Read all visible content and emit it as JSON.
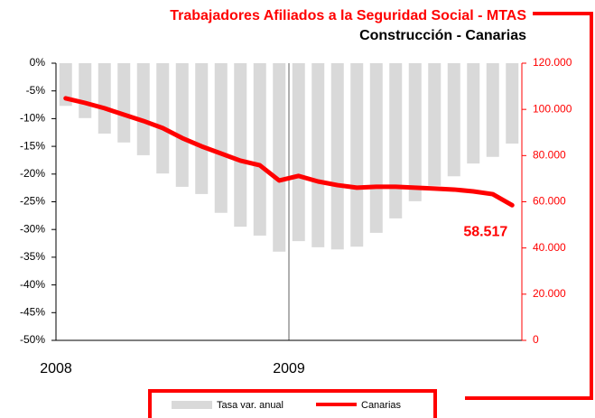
{
  "chart_data": {
    "type": "bar_line",
    "title": "Trabajadores Afiliados a la Seguridad Social - MTAS",
    "subtitle": "Construcción - Canarias",
    "categories": [
      "2008",
      null,
      null,
      null,
      null,
      null,
      null,
      null,
      null,
      null,
      null,
      null,
      "2009",
      null,
      null,
      null,
      null,
      null,
      null,
      null,
      null,
      null,
      null,
      null
    ],
    "series": [
      {
        "name": "Tasa var. anual",
        "type": "bar",
        "axis": "y",
        "color": "#d9d9d9",
        "values": [
          -7.7,
          -9.9,
          -12.7,
          -14.3,
          -16.6,
          -19.9,
          -22.3,
          -23.6,
          -27.0,
          -29.5,
          -31.1,
          -34.0,
          -32.1,
          -33.2,
          -33.6,
          -33.1,
          -30.6,
          -28.0,
          -24.9,
          -22.1,
          -20.4,
          -18.1,
          -16.9,
          -14.5
        ]
      },
      {
        "name": "Canarias",
        "type": "line",
        "axis": "y2",
        "color": "#ff0000",
        "values": [
          104800,
          102800,
          100500,
          97700,
          95000,
          91900,
          87600,
          84000,
          80900,
          77800,
          75800,
          69200,
          71200,
          68800,
          67200,
          66100,
          66500,
          66500,
          66100,
          65700,
          65300,
          64500,
          63300,
          58517
        ],
        "value_labels": [
          null,
          null,
          null,
          null,
          null,
          null,
          null,
          null,
          null,
          null,
          null,
          null,
          null,
          null,
          null,
          null,
          null,
          null,
          null,
          null,
          null,
          null,
          null,
          "58.517"
        ]
      }
    ],
    "ylim": [
      -50,
      0
    ],
    "yticks": [
      {
        "value": 0,
        "label": "0%"
      },
      {
        "value": -5,
        "label": "-5%"
      },
      {
        "value": -10,
        "label": "-10%"
      },
      {
        "value": -15,
        "label": "-15%"
      },
      {
        "value": -20,
        "label": "-20%"
      },
      {
        "value": -25,
        "label": "-25%"
      },
      {
        "value": -30,
        "label": "-30%"
      },
      {
        "value": -35,
        "label": "-35%"
      },
      {
        "value": -40,
        "label": "-40%"
      },
      {
        "value": -45,
        "label": "-45%"
      },
      {
        "value": -50,
        "label": "-50%"
      }
    ],
    "y2lim": [
      0,
      120000
    ],
    "y2ticks": [
      0,
      {
        "value": 20000,
        "label": "20.000"
      },
      {
        "value": 40000,
        "label": "40.000"
      },
      {
        "value": 60000,
        "label": "60.000"
      },
      {
        "value": 80000,
        "label": "80.000"
      },
      {
        "value": 100000,
        "label": "100.000"
      },
      {
        "value": 120000,
        "label": "120.000"
      }
    ],
    "y2color": "#ff0000",
    "legend": "bottom"
  }
}
